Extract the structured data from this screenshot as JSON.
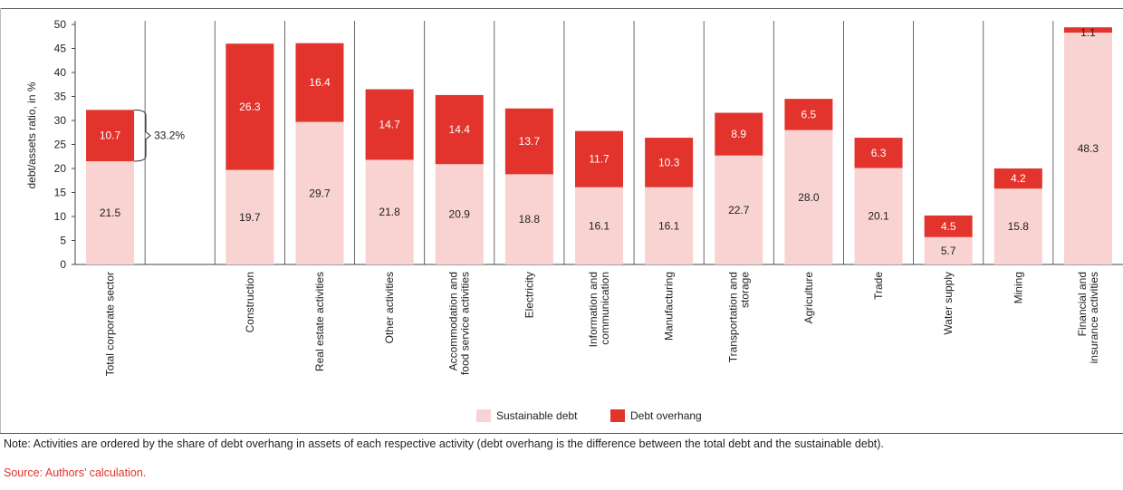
{
  "chart_data": {
    "type": "bar",
    "stacked": true,
    "ylabel": "debt/assets ratio, in %",
    "ylim": [
      0,
      50
    ],
    "yticks": [
      0,
      5,
      10,
      15,
      20,
      25,
      30,
      35,
      40,
      45,
      50
    ],
    "categories": [
      "Total corporate sector",
      "",
      "Construction",
      "Real estate activities",
      "Other activities",
      "Accommodation and food service activities",
      "Electricity",
      "Information and communication",
      "Manufacturing",
      "Transportation and storage",
      "Agriculture",
      "Trade",
      "Water supply",
      "Mining",
      "Financial and insurance activities"
    ],
    "category_lines": [
      [
        "Total corporate sector"
      ],
      [],
      [
        "Construction"
      ],
      [
        "Real estate activities"
      ],
      [
        "Other activities"
      ],
      [
        "Accommodation and",
        "food service activities"
      ],
      [
        "Electricity"
      ],
      [
        "Information and",
        "communication"
      ],
      [
        "Manufacturing"
      ],
      [
        "Transportation and",
        "storage"
      ],
      [
        "Agriculture"
      ],
      [
        "Trade"
      ],
      [
        "Water supply"
      ],
      [
        "Mining"
      ],
      [
        "Financial and",
        "insurance activities"
      ]
    ],
    "series": [
      {
        "name": "Sustainable debt",
        "color": "#f9d3d1",
        "values": [
          21.5,
          null,
          19.7,
          29.7,
          21.8,
          20.9,
          18.8,
          16.1,
          16.1,
          22.7,
          28.0,
          20.1,
          5.7,
          15.8,
          48.3
        ],
        "labels": [
          "21.5",
          "",
          "19.7",
          "29.7",
          "21.8",
          "20.9",
          "18.8",
          "16.1",
          "16.1",
          "22.7",
          "28.0",
          "20.1",
          "5.7",
          "15.8",
          "48.3"
        ]
      },
      {
        "name": "Debt overhang",
        "color": "#e2332c",
        "values": [
          10.7,
          null,
          26.3,
          16.4,
          14.7,
          14.4,
          13.7,
          11.7,
          10.3,
          8.9,
          6.5,
          6.3,
          4.5,
          4.2,
          1.1
        ],
        "labels": [
          "10.7",
          "",
          "26.3",
          "16.4",
          "14.7",
          "14.4",
          "13.7",
          "11.7",
          "10.3",
          "8.9",
          "6.5",
          "6.3",
          "4.5",
          "4.2",
          "1.1"
        ]
      }
    ],
    "annotation": {
      "category_index": 0,
      "text": "33.2%"
    },
    "legend": "bottom"
  },
  "footer": {
    "note": "Note: Activities are ordered by the share of debt overhang in assets of each respective activity (debt overhang is the difference between the total debt and the sustainable debt).",
    "source": "Source: Authors’ calculation."
  }
}
